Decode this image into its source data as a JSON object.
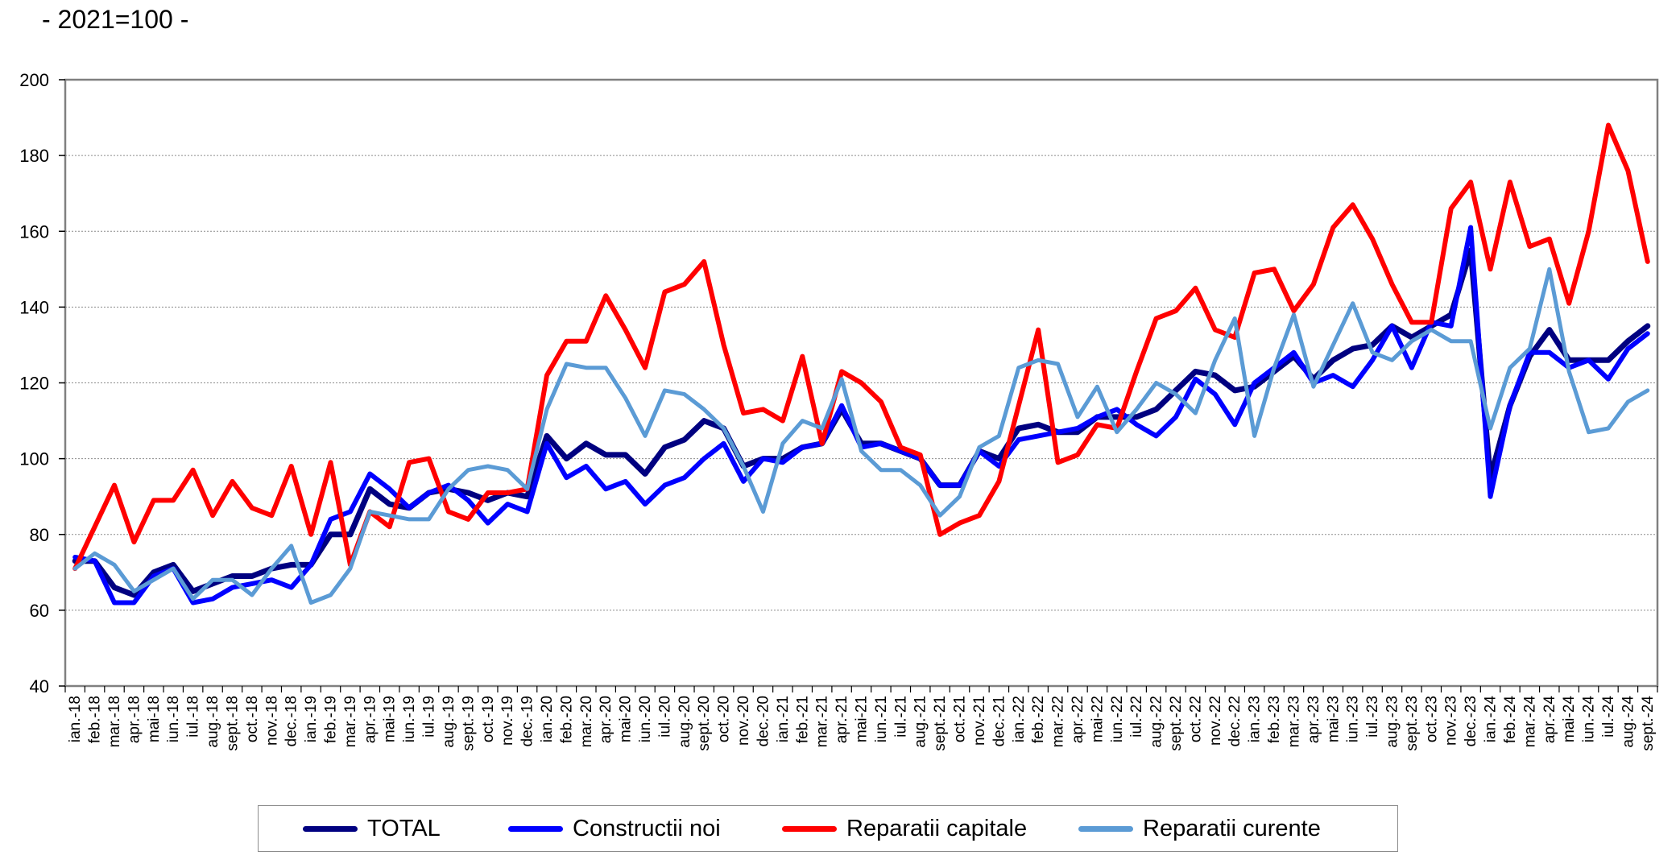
{
  "subtitle": "- 2021=100 -",
  "chart_data": {
    "type": "line",
    "ylim": [
      40,
      200
    ],
    "yticks": [
      40,
      60,
      80,
      100,
      120,
      140,
      160,
      180,
      200
    ],
    "grid": true,
    "legend_position": "bottom",
    "categories": [
      "ian.-18",
      "feb.-18",
      "mar.-18",
      "apr.-18",
      "mai-18",
      "iun.-18",
      "iul.-18",
      "aug.-18",
      "sept.-18",
      "oct.-18",
      "nov.-18",
      "dec.-18",
      "ian.-19",
      "feb.-19",
      "mar.-19",
      "apr.-19",
      "mai-19",
      "iun.-19",
      "iul.-19",
      "aug.-19",
      "sept.-19",
      "oct.-19",
      "nov.-19",
      "dec.-19",
      "ian.-20",
      "feb.-20",
      "mar.-20",
      "apr.-20",
      "mai-20",
      "iun.-20",
      "iul.-20",
      "aug.-20",
      "sept.-20",
      "oct.-20",
      "nov.-20",
      "dec.-20",
      "ian.-21",
      "feb.-21",
      "mar.-21",
      "apr.-21",
      "mai-21",
      "iun.-21",
      "iul.-21",
      "aug.-21",
      "sept.-21",
      "oct.-21",
      "nov.-21",
      "dec.-21",
      "ian.-22",
      "feb.-22",
      "mar.-22",
      "apr.-22",
      "mai-22",
      "iun.-22",
      "iul.-22",
      "aug.-22",
      "sept.-22",
      "oct.-22",
      "nov.-22",
      "dec.-22",
      "ian.-23",
      "feb.-23",
      "mar.-23",
      "apr.-23",
      "mai-23",
      "iun.-23",
      "iul.-23",
      "aug.-23",
      "sept.-23",
      "oct.-23",
      "nov.-23",
      "dec.-23",
      "ian.-24",
      "feb.-24",
      "mar.-24",
      "apr.-24",
      "mai-24",
      "iun.-24",
      "iul.-24",
      "aug.-24",
      "sept.-24"
    ],
    "series": [
      {
        "name": "TOTAL",
        "color": "#000080",
        "width": 7,
        "values": [
          73,
          73,
          66,
          64,
          70,
          72,
          65,
          67,
          69,
          69,
          71,
          72,
          72,
          80,
          80,
          92,
          88,
          87,
          91,
          92,
          91,
          89,
          91,
          90,
          106,
          100,
          104,
          101,
          101,
          96,
          103,
          105,
          110,
          108,
          98,
          100,
          100,
          103,
          104,
          113,
          104,
          104,
          102,
          100,
          93,
          93,
          102,
          100,
          108,
          109,
          107,
          107,
          111,
          111,
          111,
          113,
          118,
          123,
          122,
          118,
          119,
          123,
          127,
          121,
          126,
          129,
          130,
          135,
          132,
          135,
          138,
          155,
          95,
          114,
          127,
          134,
          126,
          126,
          126,
          131,
          135
        ]
      },
      {
        "name": "Constructii noi",
        "color": "#0000ff",
        "width": 6,
        "values": [
          74,
          73,
          62,
          62,
          69,
          71,
          62,
          63,
          66,
          67,
          68,
          66,
          72,
          84,
          86,
          96,
          92,
          87,
          91,
          93,
          89,
          83,
          88,
          86,
          104,
          95,
          98,
          92,
          94,
          88,
          93,
          95,
          100,
          104,
          94,
          100,
          99,
          103,
          104,
          114,
          103,
          104,
          102,
          100,
          93,
          93,
          102,
          98,
          105,
          106,
          107,
          108,
          111,
          113,
          109,
          106,
          111,
          121,
          117,
          109,
          120,
          124,
          128,
          120,
          122,
          119,
          126,
          135,
          124,
          136,
          135,
          161,
          90,
          114,
          128,
          128,
          124,
          126,
          121,
          129,
          133
        ]
      },
      {
        "name": "Reparatii capitale",
        "color": "#ff0000",
        "width": 6,
        "values": [
          71,
          82,
          93,
          78,
          89,
          89,
          97,
          85,
          94,
          87,
          85,
          98,
          80,
          99,
          72,
          86,
          82,
          99,
          100,
          86,
          84,
          91,
          91,
          92,
          122,
          131,
          131,
          143,
          134,
          124,
          144,
          146,
          152,
          130,
          112,
          113,
          110,
          127,
          104,
          123,
          120,
          115,
          103,
          101,
          80,
          83,
          85,
          94,
          114,
          134,
          99,
          101,
          109,
          108,
          123,
          137,
          139,
          145,
          134,
          132,
          149,
          150,
          139,
          146,
          161,
          167,
          158,
          146,
          136,
          136,
          166,
          173,
          150,
          173,
          156,
          158,
          141,
          160,
          188,
          176,
          152
        ]
      },
      {
        "name": "Reparatii curente",
        "color": "#5b9bd5",
        "width": 5,
        "values": [
          71,
          75,
          72,
          65,
          68,
          71,
          63,
          68,
          68,
          64,
          71,
          77,
          62,
          64,
          71,
          86,
          85,
          84,
          84,
          92,
          97,
          98,
          97,
          92,
          113,
          125,
          124,
          124,
          116,
          106,
          118,
          117,
          113,
          108,
          98,
          86,
          104,
          110,
          108,
          121,
          102,
          97,
          97,
          93,
          85,
          90,
          103,
          106,
          124,
          126,
          125,
          111,
          119,
          107,
          113,
          120,
          117,
          112,
          126,
          137,
          106,
          124,
          138,
          119,
          130,
          141,
          128,
          126,
          131,
          134,
          131,
          131,
          108,
          124,
          129,
          150,
          123,
          107,
          108,
          115,
          118
        ]
      }
    ]
  }
}
